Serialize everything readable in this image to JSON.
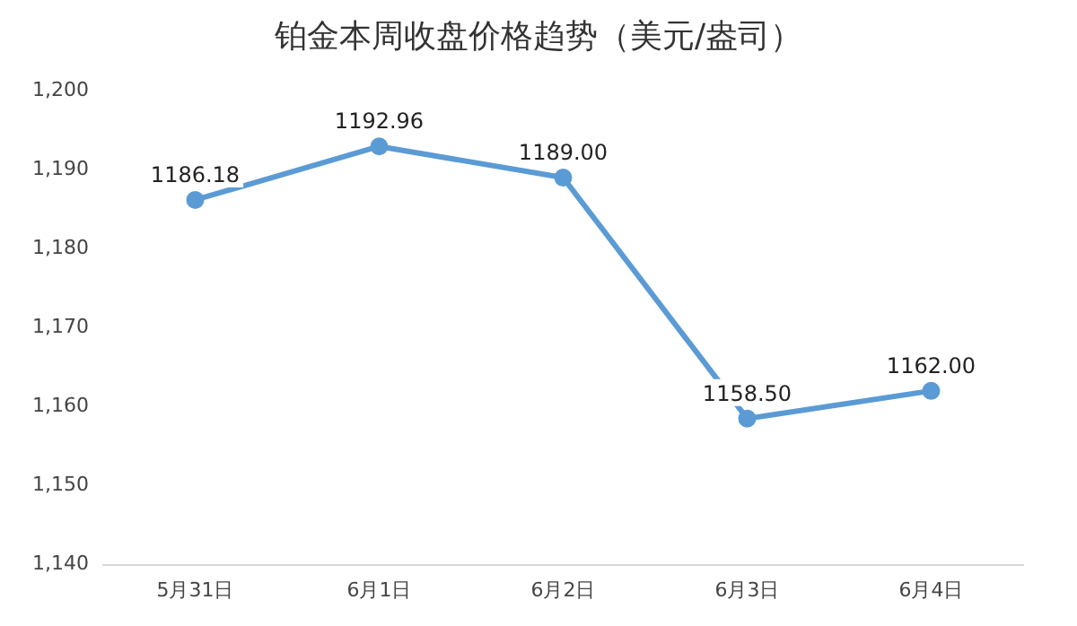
{
  "chart_data": {
    "type": "line",
    "title": "铂金本周收盘价格趋势（美元/盎司）",
    "categories": [
      "5月31日",
      "6月1日",
      "6月2日",
      "6月3日",
      "6月4日"
    ],
    "series": [
      {
        "color": "#5b9bd5",
        "values": [
          1186.18,
          1192.96,
          1189.0,
          1158.5,
          1162.0
        ]
      }
    ],
    "value_labels": [
      "1186.18",
      "1192.96",
      "1189.00",
      "1158.50",
      "1162.00"
    ],
    "ylim": [
      1140,
      1200
    ],
    "yticks": [
      {
        "value": 1140,
        "label": "1,140"
      },
      {
        "value": 1150,
        "label": "1,150"
      },
      {
        "value": 1160,
        "label": "1,160"
      },
      {
        "value": 1170,
        "label": "1,170"
      },
      {
        "value": 1180,
        "label": "1,180"
      },
      {
        "value": 1190,
        "label": "1,190"
      },
      {
        "value": 1200,
        "label": "1,200"
      }
    ],
    "grid": false,
    "legend": false,
    "marker": "circle",
    "line_style": "solid"
  }
}
